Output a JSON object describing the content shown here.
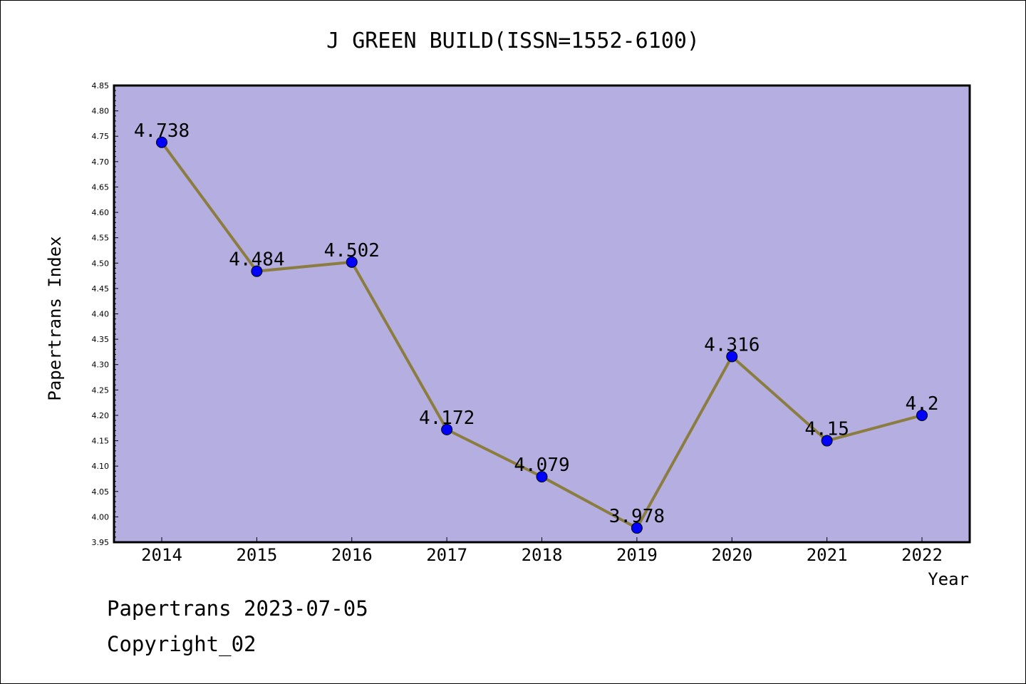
{
  "chart_data": {
    "type": "line",
    "title": "J GREEN BUILD(ISSN=1552-6100)",
    "xlabel": "Year",
    "ylabel": "Papertrans Index",
    "categories": [
      "2014",
      "2015",
      "2016",
      "2017",
      "2018",
      "2019",
      "2020",
      "2021",
      "2022"
    ],
    "values": [
      4.738,
      4.484,
      4.502,
      4.172,
      4.079,
      3.978,
      4.316,
      4.15,
      4.2
    ],
    "data_labels": [
      "4.738",
      "4.484",
      "4.502",
      "4.172",
      "4.079",
      "3.978",
      "4.316",
      "4.15",
      "4.2"
    ],
    "ylim": [
      3.95,
      4.85
    ],
    "yticks": [
      "3.95",
      "4.00",
      "4.05",
      "4.10",
      "4.15",
      "4.20",
      "4.25",
      "4.30",
      "4.35",
      "4.40",
      "4.45",
      "4.50",
      "4.55",
      "4.60",
      "4.65",
      "4.70",
      "4.75",
      "4.80",
      "4.85"
    ],
    "grid": false,
    "colors": {
      "plot_background": "#b4aee1",
      "line": "#8b7d3f",
      "marker": "#0000ff"
    }
  },
  "footer": {
    "date_line": "Papertrans 2023-07-05",
    "copyright": "Copyright_02"
  }
}
